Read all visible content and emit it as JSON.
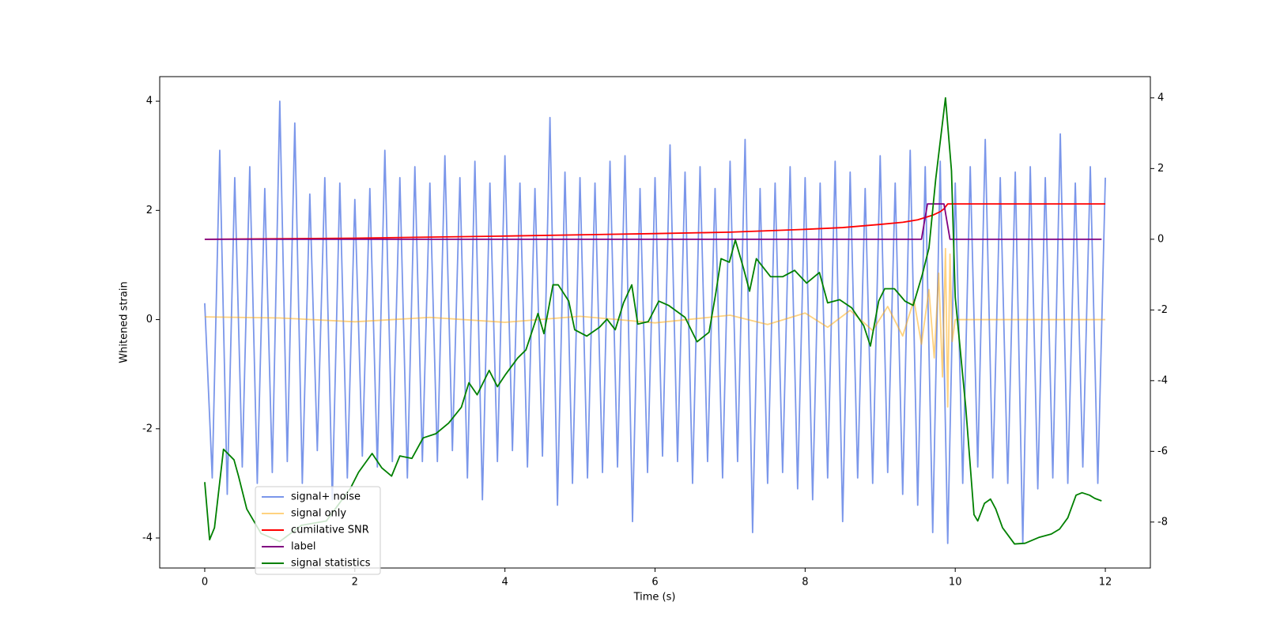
{
  "chart_data": {
    "type": "line",
    "x_label": "Time (s)",
    "y_label": "Whitened strain",
    "xlim": [
      -0.6,
      12.6
    ],
    "xticks": [
      0,
      2,
      4,
      6,
      8,
      10,
      12
    ],
    "ylim": [
      -4.55,
      4.45
    ],
    "yticks": [
      -4,
      -2,
      0,
      2,
      4
    ],
    "y2lim": [
      -9.3,
      4.6
    ],
    "y2ticks": [
      -8,
      -6,
      -4,
      -2,
      0,
      2,
      4
    ],
    "grid": false,
    "legend": "lower left",
    "series": [
      {
        "name": "signal+ noise",
        "color": "royalblue",
        "alpha": 0.7,
        "x": [
          0,
          0.1,
          0.2,
          0.3,
          0.4,
          0.5,
          0.6,
          0.7,
          0.8,
          0.9,
          1,
          1.1,
          1.2,
          1.3,
          1.4,
          1.5,
          1.6,
          1.7,
          1.8,
          1.9,
          2,
          2.1,
          2.2,
          2.3,
          2.4,
          2.5,
          2.6,
          2.7,
          2.8,
          2.9,
          3,
          3.1,
          3.2,
          3.3,
          3.4,
          3.5,
          3.6,
          3.7,
          3.8,
          3.9,
          4,
          4.1,
          4.2,
          4.3,
          4.4,
          4.5,
          4.6,
          4.7,
          4.8,
          4.9,
          5,
          5.1,
          5.2,
          5.3,
          5.4,
          5.5,
          5.6,
          5.7,
          5.8,
          5.9,
          6,
          6.1,
          6.2,
          6.3,
          6.4,
          6.5,
          6.6,
          6.7,
          6.8,
          6.9,
          7,
          7.1,
          7.2,
          7.3,
          7.4,
          7.5,
          7.6,
          7.7,
          7.8,
          7.9,
          8,
          8.1,
          8.2,
          8.3,
          8.4,
          8.5,
          8.6,
          8.7,
          8.8,
          8.9,
          9,
          9.1,
          9.2,
          9.3,
          9.4,
          9.5,
          9.6,
          9.7,
          9.8,
          9.9,
          10,
          10.1,
          10.2,
          10.3,
          10.4,
          10.5,
          10.6,
          10.7,
          10.8,
          10.9,
          11,
          11.1,
          11.2,
          11.3,
          11.4,
          11.5,
          11.6,
          11.7,
          11.8,
          11.9,
          12
        ],
        "values": [
          0.3,
          -2.9,
          3.1,
          -3.2,
          2.6,
          -2.7,
          2.8,
          -3.0,
          2.4,
          -2.8,
          4.0,
          -2.6,
          3.6,
          -3.0,
          2.3,
          -2.4,
          2.6,
          -3.3,
          2.5,
          -2.9,
          2.2,
          -2.5,
          2.4,
          -2.7,
          3.1,
          -2.6,
          2.6,
          -2.9,
          2.8,
          -2.6,
          2.5,
          -2.6,
          3.0,
          -2.4,
          2.6,
          -2.9,
          2.9,
          -3.3,
          2.5,
          -2.6,
          3.0,
          -2.4,
          2.5,
          -2.7,
          2.4,
          -2.5,
          3.7,
          -3.4,
          2.7,
          -3.0,
          2.6,
          -2.9,
          2.5,
          -2.8,
          2.9,
          -2.7,
          3.0,
          -3.7,
          2.4,
          -2.8,
          2.6,
          -2.5,
          3.2,
          -2.6,
          2.7,
          -3.0,
          2.8,
          -2.6,
          2.4,
          -2.9,
          2.9,
          -2.6,
          3.3,
          -3.9,
          2.4,
          -3.0,
          2.5,
          -2.8,
          2.8,
          -3.1,
          2.6,
          -3.3,
          2.5,
          -2.9,
          2.9,
          -3.7,
          2.7,
          -2.9,
          2.4,
          -3.0,
          3.0,
          -2.8,
          2.5,
          -3.2,
          3.1,
          -3.4,
          2.8,
          -3.9,
          2.9,
          -4.1,
          2.5,
          -3.0,
          2.8,
          -2.7,
          3.3,
          -2.9,
          2.6,
          -3.0,
          2.7,
          -4.1,
          2.8,
          -3.1,
          2.6,
          -2.9,
          3.4,
          -3.0,
          2.5,
          -2.7,
          2.8,
          -3.0,
          2.6
        ]
      },
      {
        "name": "signal only",
        "color": "orange",
        "alpha": 0.5,
        "x": [
          0,
          1,
          2,
          3,
          4,
          5,
          6,
          7,
          7.5,
          8,
          8.3,
          8.6,
          8.9,
          9.1,
          9.3,
          9.45,
          9.55,
          9.65,
          9.72,
          9.78,
          9.83,
          9.87,
          9.9,
          9.93,
          9.96,
          10,
          11,
          12
        ],
        "values": [
          0.05,
          0.03,
          -0.04,
          0.04,
          -0.05,
          0.06,
          -0.06,
          0.08,
          -0.09,
          0.12,
          -0.14,
          0.17,
          -0.2,
          0.24,
          -0.3,
          0.36,
          -0.45,
          0.55,
          -0.7,
          0.85,
          -1.05,
          1.3,
          -1.6,
          1.2,
          -0.4,
          0,
          0,
          0
        ]
      },
      {
        "name": "cumilative SNR",
        "color": "red",
        "alpha": 1,
        "axis": "y2",
        "x": [
          0,
          2,
          4,
          6,
          7,
          8,
          8.5,
          9,
          9.3,
          9.5,
          9.7,
          9.8,
          9.85,
          9.9,
          10,
          12
        ],
        "values": [
          0,
          0.03,
          0.09,
          0.16,
          0.2,
          0.28,
          0.33,
          0.42,
          0.48,
          0.55,
          0.68,
          0.78,
          0.86,
          1,
          1,
          1
        ]
      },
      {
        "name": "label",
        "color": "purple",
        "alpha": 1,
        "axis": "y2",
        "x": [
          0,
          9.55,
          9.63,
          9.85,
          9.93,
          11.95
        ],
        "values": [
          0,
          0,
          1,
          1,
          0,
          0
        ]
      },
      {
        "name": "signal statistics",
        "color": "green",
        "alpha": 1,
        "axis": "y2",
        "x": [
          0,
          0.065,
          0.13,
          0.25,
          0.39,
          0.45,
          0.56,
          0.75,
          1.0,
          1.29,
          1.62,
          1.94,
          2.05,
          2.23,
          2.36,
          2.49,
          2.6,
          2.76,
          2.91,
          3.08,
          3.25,
          3.42,
          3.52,
          3.63,
          3.79,
          3.9,
          4.01,
          4.17,
          4.28,
          4.44,
          4.52,
          4.64,
          4.71,
          4.85,
          4.93,
          5.09,
          5.26,
          5.36,
          5.47,
          5.58,
          5.69,
          5.77,
          5.91,
          6.05,
          6.18,
          6.4,
          6.56,
          6.72,
          6.81,
          6.88,
          6.99,
          7.07,
          7.18,
          7.26,
          7.35,
          7.54,
          7.7,
          7.86,
          8.02,
          8.19,
          8.3,
          8.46,
          8.62,
          8.78,
          8.87,
          8.98,
          9.06,
          9.19,
          9.33,
          9.44,
          9.56,
          9.65,
          9.74,
          9.87,
          9.95,
          10.0,
          10.14,
          10.25,
          10.3,
          10.39,
          10.47,
          10.54,
          10.63,
          10.79,
          10.93,
          11.12,
          11.28,
          11.39,
          11.5,
          11.61,
          11.69,
          11.79,
          11.86,
          11.95
        ],
        "values": [
          -6.87,
          -8.5,
          -8.16,
          -5.94,
          -6.24,
          -6.7,
          -7.63,
          -8.32,
          -8.55,
          -8.09,
          -7.97,
          -7.05,
          -6.59,
          -6.06,
          -6.47,
          -6.7,
          -6.13,
          -6.2,
          -5.62,
          -5.5,
          -5.2,
          -4.75,
          -4.06,
          -4.4,
          -3.71,
          -4.17,
          -3.82,
          -3.36,
          -3.13,
          -2.1,
          -2.67,
          -1.29,
          -1.29,
          -1.75,
          -2.56,
          -2.74,
          -2.49,
          -2.26,
          -2.56,
          -1.8,
          -1.29,
          -2.4,
          -2.33,
          -1.75,
          -1.87,
          -2.21,
          -2.9,
          -2.63,
          -1.52,
          -0.55,
          -0.65,
          -0.02,
          -0.83,
          -1.47,
          -0.55,
          -1.06,
          -1.06,
          -0.88,
          -1.24,
          -0.94,
          -1.8,
          -1.71,
          -1.94,
          -2.44,
          -3.02,
          -1.75,
          -1.4,
          -1.4,
          -1.75,
          -1.87,
          -1.01,
          -0.25,
          1.7,
          4.0,
          1.94,
          -1.64,
          -4.75,
          -7.79,
          -7.97,
          -7.47,
          -7.35,
          -7.63,
          -8.16,
          -8.62,
          -8.6,
          -8.43,
          -8.34,
          -8.2,
          -7.88,
          -7.24,
          -7.17,
          -7.24,
          -7.33,
          -7.4
        ]
      }
    ]
  }
}
